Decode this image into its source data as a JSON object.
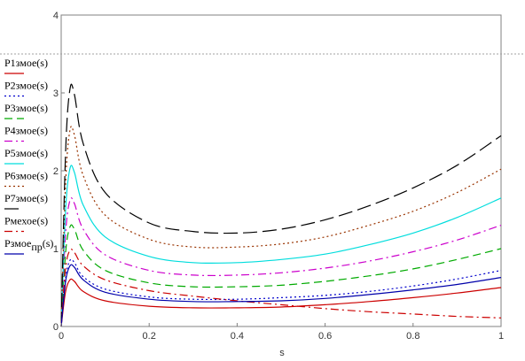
{
  "chart_data": {
    "type": "line",
    "xlabel": "s",
    "ylabel": "",
    "xlim": [
      0,
      1
    ],
    "ylim": [
      0,
      4
    ],
    "x_ticks": [
      "0",
      "0.2",
      "0.4",
      "0.6",
      "0.8",
      "1"
    ],
    "y_ticks": [
      "0",
      "1",
      "2",
      "3",
      "4"
    ],
    "reference_line": {
      "y": 3.5,
      "style": "dotted",
      "color": "#a0a0a0"
    },
    "legend_position": "left",
    "series": [
      {
        "name": "P1змое(s)",
        "name_main": "P1змое(s)",
        "name_sub": "",
        "name_tail": "",
        "color": "#cc0000",
        "dash": "solid",
        "x": [
          0,
          0.01,
          0.02,
          0.03,
          0.05,
          0.1,
          0.2,
          0.3,
          0.4,
          0.5,
          0.6,
          0.7,
          0.8,
          0.9,
          1.0
        ],
        "y": [
          0,
          0.45,
          0.6,
          0.58,
          0.45,
          0.33,
          0.26,
          0.24,
          0.24,
          0.25,
          0.28,
          0.32,
          0.37,
          0.43,
          0.5
        ]
      },
      {
        "name": "P2змое(s)",
        "name_main": "P2змое(s)",
        "name_sub": "",
        "name_tail": "",
        "color": "#0000cc",
        "dash": "dotted",
        "x": [
          0,
          0.01,
          0.02,
          0.03,
          0.05,
          0.1,
          0.2,
          0.3,
          0.4,
          0.5,
          0.6,
          0.7,
          0.8,
          0.9,
          1.0
        ],
        "y": [
          0,
          0.62,
          0.85,
          0.82,
          0.64,
          0.48,
          0.38,
          0.35,
          0.35,
          0.37,
          0.4,
          0.45,
          0.52,
          0.61,
          0.72
        ]
      },
      {
        "name": "P3змое(s)",
        "name_main": "P3змое(s)",
        "name_sub": "",
        "name_tail": "",
        "color": "#00aa00",
        "dash": "dashed",
        "x": [
          0,
          0.01,
          0.02,
          0.03,
          0.05,
          0.1,
          0.2,
          0.3,
          0.4,
          0.5,
          0.6,
          0.7,
          0.8,
          0.9,
          1.0
        ],
        "y": [
          0,
          0.95,
          1.28,
          1.25,
          0.98,
          0.72,
          0.56,
          0.51,
          0.51,
          0.53,
          0.58,
          0.65,
          0.74,
          0.86,
          1.0
        ]
      },
      {
        "name": "P4змое(s)",
        "name_main": "P4змое(s)",
        "name_sub": "",
        "name_tail": "",
        "color": "#cc00cc",
        "dash": "dashdot",
        "x": [
          0,
          0.01,
          0.02,
          0.03,
          0.05,
          0.1,
          0.2,
          0.3,
          0.4,
          0.5,
          0.6,
          0.7,
          0.8,
          0.9,
          1.0
        ],
        "y": [
          0,
          1.2,
          1.62,
          1.58,
          1.25,
          0.92,
          0.72,
          0.66,
          0.66,
          0.69,
          0.75,
          0.84,
          0.96,
          1.11,
          1.3
        ]
      },
      {
        "name": "P5змое(s)",
        "name_main": "P5змое(s)",
        "name_sub": "",
        "name_tail": "",
        "color": "#00dddd",
        "dash": "solid",
        "x": [
          0,
          0.01,
          0.02,
          0.03,
          0.05,
          0.1,
          0.2,
          0.3,
          0.4,
          0.5,
          0.6,
          0.7,
          0.8,
          0.9,
          1.0
        ],
        "y": [
          0,
          1.5,
          2.03,
          1.98,
          1.56,
          1.15,
          0.9,
          0.82,
          0.82,
          0.86,
          0.93,
          1.05,
          1.2,
          1.4,
          1.65
        ]
      },
      {
        "name": "P6змое(s)",
        "name_main": "P6змое(s)",
        "name_sub": "",
        "name_tail": "",
        "color": "#993300",
        "dash": "dotted",
        "x": [
          0,
          0.01,
          0.02,
          0.03,
          0.05,
          0.1,
          0.2,
          0.3,
          0.4,
          0.5,
          0.6,
          0.7,
          0.8,
          0.9,
          1.0
        ],
        "y": [
          0,
          1.85,
          2.52,
          2.46,
          1.94,
          1.43,
          1.12,
          1.02,
          1.02,
          1.06,
          1.15,
          1.3,
          1.48,
          1.72,
          2.02
        ]
      },
      {
        "name": "P7змое(s)",
        "name_main": "P7змое(s)",
        "name_sub": "",
        "name_tail": "",
        "color": "#000000",
        "dash": "longdash",
        "x": [
          0,
          0.01,
          0.02,
          0.03,
          0.05,
          0.1,
          0.2,
          0.3,
          0.4,
          0.5,
          0.6,
          0.7,
          0.8,
          0.9,
          1.0
        ],
        "y": [
          0,
          2.25,
          3.05,
          2.98,
          2.35,
          1.72,
          1.33,
          1.22,
          1.2,
          1.25,
          1.37,
          1.55,
          1.78,
          2.07,
          2.45
        ]
      },
      {
        "name": "Pмехое(s)",
        "name_main": "Pмехое(s)",
        "name_sub": "",
        "name_tail": "",
        "color": "#cc0000",
        "dash": "dashdot",
        "x": [
          0,
          0.01,
          0.02,
          0.03,
          0.05,
          0.1,
          0.2,
          0.3,
          0.4,
          0.5,
          0.6,
          0.7,
          0.8,
          0.9,
          1.0
        ],
        "y": [
          0,
          0.75,
          0.98,
          0.95,
          0.78,
          0.6,
          0.46,
          0.39,
          0.33,
          0.28,
          0.23,
          0.19,
          0.16,
          0.13,
          0.11
        ]
      },
      {
        "name": "Pзмое пр(s)",
        "name_main": "Pзмое",
        "name_sub": "пр",
        "name_tail": "(s)",
        "color": "#0000aa",
        "dash": "solid",
        "x": [
          0,
          0.01,
          0.02,
          0.03,
          0.05,
          0.1,
          0.2,
          0.3,
          0.4,
          0.5,
          0.6,
          0.7,
          0.8,
          0.9,
          1.0
        ],
        "y": [
          0,
          0.58,
          0.78,
          0.76,
          0.6,
          0.44,
          0.35,
          0.32,
          0.32,
          0.33,
          0.36,
          0.41,
          0.47,
          0.54,
          0.63
        ]
      }
    ]
  }
}
